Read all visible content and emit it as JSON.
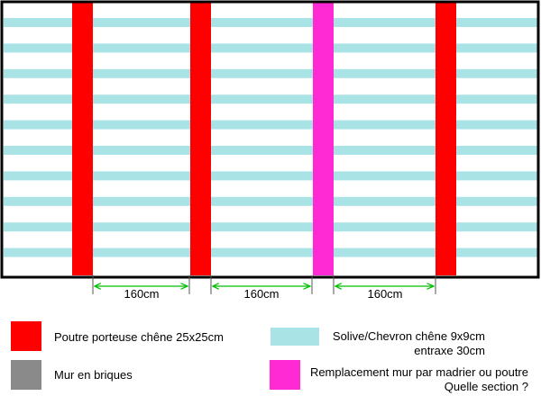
{
  "colors": {
    "frame": "#000000",
    "joist": "#a9e3e6",
    "beam": "#ff0000",
    "replacement": "#ff2ad4",
    "brick": "#8a8a8a",
    "dimension": "#00c000"
  },
  "plan": {
    "joist_count": 10,
    "beams": [
      {
        "kind": "beam"
      },
      {
        "kind": "beam"
      },
      {
        "kind": "replacement"
      },
      {
        "kind": "beam"
      }
    ]
  },
  "dimensions": [
    {
      "label": "160cm"
    },
    {
      "label": "160cm"
    },
    {
      "label": "160cm"
    }
  ],
  "legend": {
    "beam": {
      "line1": "Poutre porteuse chêne 25x25cm"
    },
    "brick": {
      "line1": "Mur en briques"
    },
    "joist": {
      "line1": "Solive/Chevron chêne 9x9cm",
      "line2": "entraxe  30cm"
    },
    "replacement": {
      "line1": "Remplacement mur par madrier ou poutre",
      "line2": "Quelle section ?"
    }
  }
}
